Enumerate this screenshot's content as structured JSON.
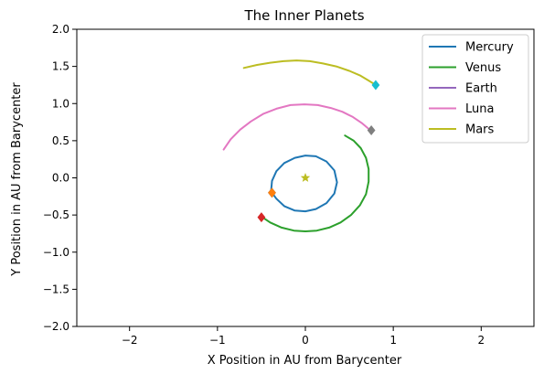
{
  "chart_data": {
    "type": "line",
    "title": "The Inner Planets",
    "xlabel": "X Position in AU from Barycenter",
    "ylabel": "Y Position in AU from Barycenter",
    "xlim": [
      -2.6,
      2.6
    ],
    "ylim": [
      -2.0,
      2.0
    ],
    "xticks": [
      -2,
      -1,
      0,
      1,
      2
    ],
    "xtick_labels": [
      "−2",
      "−1",
      "0",
      "1",
      "2"
    ],
    "yticks": [
      2.0,
      1.5,
      1.0,
      0.5,
      0.0,
      -0.5,
      -1.0,
      -1.5,
      -2.0
    ],
    "ytick_labels": [
      "2.0",
      "1.5",
      "1.0",
      "0.5",
      "0.0",
      "−0.5",
      "−1.0",
      "−1.5",
      "−2.0"
    ],
    "grid": false,
    "legend_position": "top-right",
    "series": [
      {
        "name": "Mercury",
        "color": "#1f77b4",
        "x": [
          -0.39,
          -0.38,
          -0.33,
          -0.24,
          -0.12,
          0.0,
          0.12,
          0.24,
          0.33,
          0.36,
          0.33,
          0.24,
          0.12,
          0.0,
          -0.12,
          -0.24,
          -0.33,
          -0.38
        ],
        "y": [
          -0.18,
          -0.04,
          0.09,
          0.2,
          0.27,
          0.3,
          0.29,
          0.22,
          0.1,
          -0.06,
          -0.21,
          -0.34,
          -0.42,
          -0.45,
          -0.44,
          -0.38,
          -0.28,
          -0.2
        ]
      },
      {
        "name": "Venus",
        "color": "#2ca02c",
        "x": [
          -0.5,
          -0.4,
          -0.27,
          -0.13,
          0.0,
          0.13,
          0.27,
          0.4,
          0.52,
          0.62,
          0.69,
          0.72,
          0.72,
          0.69,
          0.63,
          0.55,
          0.45
        ],
        "y": [
          -0.52,
          -0.6,
          -0.67,
          -0.71,
          -0.72,
          -0.71,
          -0.67,
          -0.6,
          -0.5,
          -0.37,
          -0.22,
          -0.05,
          0.12,
          0.27,
          0.4,
          0.5,
          0.57
        ]
      },
      {
        "name": "Earth",
        "color": "#9467bd",
        "x": [],
        "y": []
      },
      {
        "name": "Luna",
        "color": "#e377c2",
        "x": [
          -0.93,
          -0.85,
          -0.74,
          -0.62,
          -0.48,
          -0.33,
          -0.17,
          -0.01,
          0.14,
          0.29,
          0.42,
          0.54,
          0.64,
          0.72,
          0.75
        ],
        "y": [
          0.38,
          0.52,
          0.65,
          0.76,
          0.86,
          0.93,
          0.98,
          0.99,
          0.98,
          0.94,
          0.89,
          0.82,
          0.74,
          0.66,
          0.64
        ]
      },
      {
        "name": "Mars",
        "color": "#bcbd22",
        "x": [
          -0.7,
          -0.55,
          -0.4,
          -0.25,
          -0.1,
          0.05,
          0.2,
          0.35,
          0.5,
          0.62,
          0.72,
          0.8
        ],
        "y": [
          1.48,
          1.52,
          1.55,
          1.57,
          1.58,
          1.57,
          1.54,
          1.5,
          1.44,
          1.38,
          1.31,
          1.25
        ]
      }
    ],
    "markers": [
      {
        "shape": "diamond",
        "color": "#1f77b4",
        "x": -0.38,
        "y": -0.2
      },
      {
        "shape": "diamond",
        "color": "#ff7f0e",
        "x": -0.38,
        "y": -0.2
      },
      {
        "shape": "diamond",
        "color": "#d62728",
        "x": -0.5,
        "y": -0.53
      },
      {
        "shape": "diamond",
        "color": "#7f7f7f",
        "x": 0.75,
        "y": 0.64
      },
      {
        "shape": "diamond",
        "color": "#17becf",
        "x": 0.8,
        "y": 1.25
      },
      {
        "shape": "star",
        "color": "#bcbd22",
        "x": 0.0,
        "y": 0.0
      }
    ]
  }
}
